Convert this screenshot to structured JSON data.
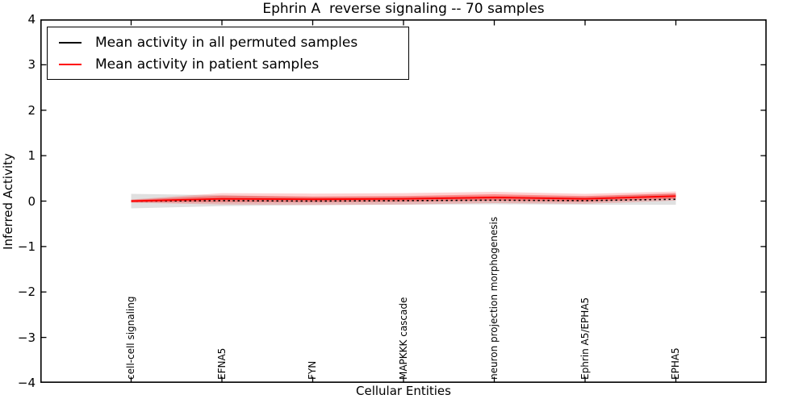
{
  "chart_data": {
    "type": "line",
    "title": "Ephrin A  reverse signaling -- 70 samples",
    "xlabel": "Cellular Entities",
    "ylabel": "Inferred Activity",
    "ylim": [
      -4,
      4
    ],
    "yticks": [
      4,
      3,
      2,
      1,
      0,
      -1,
      -2,
      -3,
      -4
    ],
    "grid": false,
    "legend_position": "upper left",
    "categories": [
      "cell-cell signaling",
      "EFNA5",
      "FYN",
      "MAPKKK cascade",
      "neuron projection morphogenesis",
      "Ephrin A5/EPHA5",
      "EPHA5"
    ],
    "series": [
      {
        "name": "Mean activity in all permuted samples",
        "color": "#000000",
        "line_style": "dotted",
        "values": [
          0.0,
          0.01,
          0.0,
          0.01,
          0.02,
          0.01,
          0.04
        ]
      },
      {
        "name": "Mean activity in patient samples",
        "color": "#ff0000",
        "line_style": "solid",
        "values": [
          0.0,
          0.05,
          0.04,
          0.05,
          0.08,
          0.05,
          0.11
        ]
      }
    ],
    "bands": [
      {
        "name": "permuted-samples-spread",
        "color": "rgba(0,0,0,0.12)",
        "center_series": 0,
        "half_widths": [
          0.16,
          0.12,
          0.09,
          0.09,
          0.09,
          0.09,
          0.12
        ]
      },
      {
        "name": "patient-samples-spread-outer",
        "color": "rgba(255,0,0,0.18)",
        "center_series": 1,
        "half_widths": [
          0.035,
          0.125,
          0.125,
          0.125,
          0.125,
          0.11,
          0.1
        ]
      },
      {
        "name": "patient-samples-spread-inner",
        "color": "rgba(255,0,0,0.33)",
        "center_series": 1,
        "half_widths": [
          0.026,
          0.07,
          0.06,
          0.06,
          0.07,
          0.06,
          0.06
        ]
      }
    ],
    "axis_color": "#000000"
  }
}
